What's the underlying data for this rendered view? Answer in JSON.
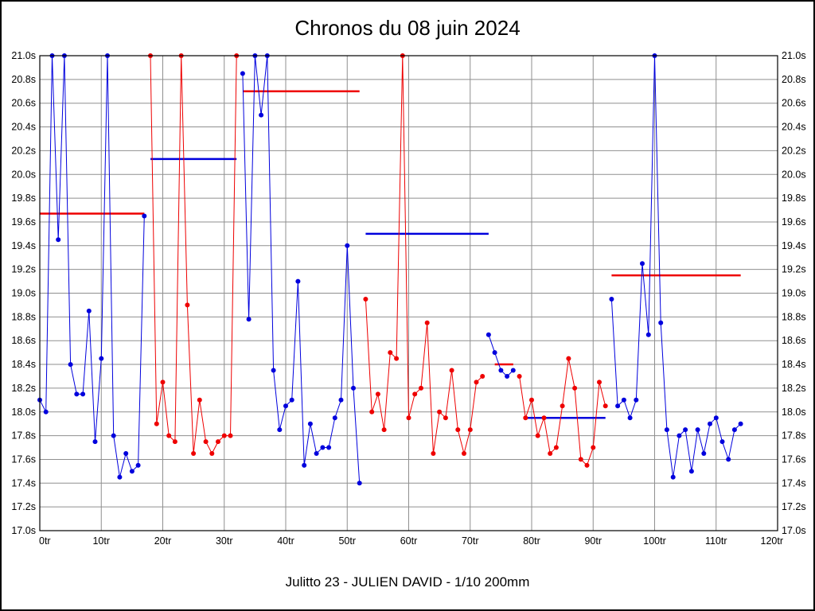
{
  "chart_data": {
    "type": "line",
    "title": "Chronos du 08 juin 2024",
    "caption": "Julitto 23 - JULIEN DAVID - 1/10 200mm",
    "x_unit": "tr",
    "y_unit": "s",
    "xlim": [
      0,
      120
    ],
    "ylim": [
      17.0,
      21.0
    ],
    "x_tick_step": 10,
    "y_tick_step": 0.2,
    "grid": true,
    "grid_color": "#8f8f8f",
    "axis_color": "#000000",
    "x_ticks": [
      "0tr",
      "10tr",
      "20tr",
      "30tr",
      "40tr",
      "50tr",
      "60tr",
      "70tr",
      "80tr",
      "90tr",
      "100tr",
      "110tr",
      "120tr"
    ],
    "y_ticks": [
      "17.0s",
      "17.2s",
      "17.4s",
      "17.6s",
      "17.8s",
      "18.0s",
      "18.2s",
      "18.4s",
      "18.6s",
      "18.8s",
      "19.0s",
      "19.2s",
      "19.4s",
      "19.6s",
      "19.8s",
      "20.0s",
      "20.2s",
      "20.4s",
      "20.6s",
      "20.8s",
      "21.0s"
    ],
    "colors": {
      "blue": "#0000dd",
      "red": "#ee0000"
    },
    "series": [
      {
        "name": "heat-1-laps",
        "color": "#0000dd",
        "points": [
          [
            0,
            18.1
          ],
          [
            1,
            18.0
          ],
          [
            2,
            21.0
          ],
          [
            3,
            19.45
          ],
          [
            4,
            21.0
          ],
          [
            5,
            18.4
          ],
          [
            6,
            18.15
          ],
          [
            7,
            18.15
          ],
          [
            8,
            18.85
          ],
          [
            9,
            17.75
          ],
          [
            10,
            18.45
          ],
          [
            11,
            21.0
          ],
          [
            12,
            17.8
          ],
          [
            13,
            17.45
          ],
          [
            14,
            17.65
          ],
          [
            15,
            17.5
          ],
          [
            16,
            17.55
          ],
          [
            17,
            19.65
          ]
        ]
      },
      {
        "name": "heat-2-laps",
        "color": "#ee0000",
        "points": [
          [
            18,
            21.0
          ],
          [
            19,
            17.9
          ],
          [
            20,
            18.25
          ],
          [
            21,
            17.8
          ],
          [
            22,
            17.75
          ],
          [
            23,
            21.0
          ],
          [
            24,
            18.9
          ],
          [
            25,
            17.65
          ],
          [
            26,
            18.1
          ],
          [
            27,
            17.75
          ],
          [
            28,
            17.65
          ],
          [
            29,
            17.75
          ],
          [
            30,
            17.8
          ],
          [
            31,
            17.8
          ],
          [
            32,
            21.0
          ]
        ]
      },
      {
        "name": "heat-3-laps",
        "color": "#0000dd",
        "points": [
          [
            33,
            20.85
          ],
          [
            34,
            18.78
          ],
          [
            35,
            21.0
          ],
          [
            36,
            20.5
          ],
          [
            37,
            21.0
          ],
          [
            38,
            18.35
          ],
          [
            39,
            17.85
          ],
          [
            40,
            18.05
          ],
          [
            41,
            18.1
          ],
          [
            42,
            19.1
          ],
          [
            43,
            17.55
          ],
          [
            44,
            17.9
          ],
          [
            45,
            17.65
          ],
          [
            46,
            17.7
          ],
          [
            47,
            17.7
          ],
          [
            48,
            17.95
          ],
          [
            49,
            18.1
          ],
          [
            50,
            19.4
          ],
          [
            51,
            18.2
          ],
          [
            52,
            17.4
          ]
        ]
      },
      {
        "name": "heat-4-laps",
        "color": "#ee0000",
        "points": [
          [
            53,
            18.95
          ],
          [
            54,
            18.0
          ],
          [
            55,
            18.15
          ],
          [
            56,
            17.85
          ],
          [
            57,
            18.5
          ],
          [
            58,
            18.45
          ],
          [
            59,
            21.0
          ],
          [
            60,
            17.95
          ],
          [
            61,
            18.15
          ],
          [
            62,
            18.2
          ],
          [
            63,
            18.75
          ],
          [
            64,
            17.65
          ],
          [
            65,
            18.0
          ],
          [
            66,
            17.95
          ],
          [
            67,
            18.35
          ],
          [
            68,
            17.85
          ],
          [
            69,
            17.65
          ],
          [
            70,
            17.85
          ],
          [
            71,
            18.25
          ],
          [
            72,
            18.3
          ]
        ]
      },
      {
        "name": "heat-5-laps",
        "color": "#0000dd",
        "points": [
          [
            73,
            18.65
          ],
          [
            74,
            18.5
          ],
          [
            75,
            18.35
          ],
          [
            76,
            18.3
          ],
          [
            77,
            18.35
          ]
        ]
      },
      {
        "name": "heat-6-laps",
        "color": "#ee0000",
        "points": [
          [
            78,
            18.3
          ],
          [
            79,
            17.95
          ],
          [
            80,
            18.1
          ],
          [
            81,
            17.8
          ],
          [
            82,
            17.95
          ],
          [
            83,
            17.65
          ],
          [
            84,
            17.7
          ],
          [
            85,
            18.05
          ],
          [
            86,
            18.45
          ],
          [
            87,
            18.2
          ],
          [
            88,
            17.6
          ],
          [
            89,
            17.55
          ],
          [
            90,
            17.7
          ],
          [
            91,
            18.25
          ],
          [
            92,
            18.05
          ]
        ]
      },
      {
        "name": "heat-7-laps",
        "color": "#0000dd",
        "points": [
          [
            93,
            18.95
          ],
          [
            94,
            18.05
          ],
          [
            95,
            18.1
          ],
          [
            96,
            17.95
          ],
          [
            97,
            18.1
          ],
          [
            98,
            19.25
          ],
          [
            99,
            18.65
          ],
          [
            100,
            21.0
          ],
          [
            101,
            18.75
          ],
          [
            102,
            17.85
          ],
          [
            103,
            17.45
          ],
          [
            104,
            17.8
          ],
          [
            105,
            17.85
          ],
          [
            106,
            17.5
          ],
          [
            107,
            17.85
          ],
          [
            108,
            17.65
          ],
          [
            109,
            17.9
          ],
          [
            110,
            17.95
          ],
          [
            111,
            17.75
          ],
          [
            112,
            17.6
          ],
          [
            113,
            17.85
          ],
          [
            114,
            17.9
          ]
        ]
      }
    ],
    "average_lines": [
      {
        "name": "average-heat-1",
        "color": "#ee0000",
        "x_start": 0,
        "x_end": 17,
        "y": 19.67
      },
      {
        "name": "average-heat-2",
        "color": "#0000dd",
        "x_start": 18,
        "x_end": 32,
        "y": 20.13
      },
      {
        "name": "average-heat-3",
        "color": "#ee0000",
        "x_start": 33,
        "x_end": 52,
        "y": 20.7
      },
      {
        "name": "average-heat-4",
        "color": "#0000dd",
        "x_start": 53,
        "x_end": 73,
        "y": 19.5
      },
      {
        "name": "average-heat-5",
        "color": "#ee0000",
        "x_start": 74,
        "x_end": 77,
        "y": 18.4
      },
      {
        "name": "average-heat-6",
        "color": "#0000dd",
        "x_start": 79,
        "x_end": 92,
        "y": 17.95
      },
      {
        "name": "average-heat-7",
        "color": "#ee0000",
        "x_start": 93,
        "x_end": 114,
        "y": 19.15
      }
    ]
  }
}
